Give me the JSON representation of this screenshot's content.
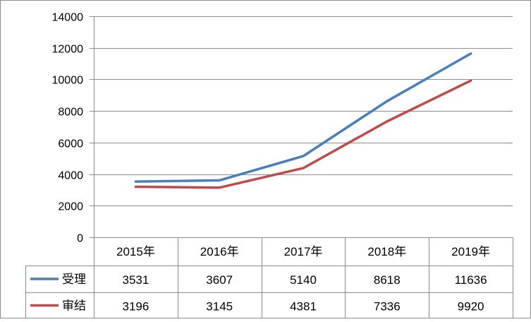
{
  "chart_data": {
    "type": "line",
    "categories": [
      "2015年",
      "2016年",
      "2017年",
      "2018年",
      "2019年"
    ],
    "series": [
      {
        "name": "受理",
        "values": [
          3531,
          3607,
          5140,
          8618,
          11636
        ],
        "color": "#4a7ebb"
      },
      {
        "name": "审结",
        "values": [
          3196,
          3145,
          4381,
          7336,
          9920
        ],
        "color": "#be4b48"
      }
    ],
    "ylim": [
      0,
      14000
    ],
    "yticks": [
      0,
      2000,
      4000,
      6000,
      8000,
      10000,
      12000,
      14000
    ],
    "grid": "horizontal",
    "legend": "data-table",
    "data_table": true
  }
}
